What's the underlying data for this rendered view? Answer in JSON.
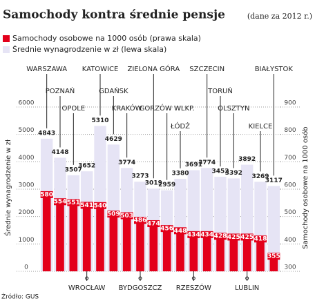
{
  "chart_data": {
    "type": "bar",
    "title": "Samochody kontra średnie pensje",
    "subtitle": "(dane za 2012 r.)",
    "source": "Źródło: GUS",
    "categories": [
      "WARSZAWA",
      "POZNAŃ",
      "OPOLE",
      "WROCŁAW",
      "KATOWICE",
      "GDAŃSK",
      "KRAKÓW",
      "BYDGOSZCZ",
      "ZIELONA GÓRA",
      "GORZÓW WLKP.",
      "ŁÓDŹ",
      "RZESZÓW",
      "SZCZECIN",
      "TORUŃ",
      "OLSZTYN",
      "LUBLIN",
      "KIELCE",
      "BIAŁYSTOK"
    ],
    "series": [
      {
        "name": "Samochody osobowe na 1000 osób (prawa skala)",
        "color": "#e3001b",
        "axis": "y2",
        "values": [
          580,
          554,
          551,
          541,
          540,
          509,
          503,
          486,
          474,
          456,
          448,
          434,
          434,
          428,
          425,
          425,
          418,
          355
        ]
      },
      {
        "name": "Średnie wynagrodzenie w zł (lewa skala)",
        "color": "#e6e4f5",
        "values": [
          4843,
          4148,
          3507,
          3652,
          5310,
          4629,
          3774,
          3273,
          3019,
          2959,
          3380,
          3691,
          3774,
          3452,
          3392,
          3892,
          3269,
          3117
        ]
      }
    ],
    "ylabel": "Średnie wynagrodzenie w zł",
    "y2label": "Samochody osobowe na 1000 osób",
    "ylim": [
      0,
      6000
    ],
    "yticks": [
      0,
      1000,
      2000,
      3000,
      4000,
      5000,
      6000
    ],
    "y2lim": [
      300,
      900
    ],
    "y2ticks": [
      300,
      400,
      500,
      600,
      700,
      800,
      900
    ],
    "grid": true
  }
}
